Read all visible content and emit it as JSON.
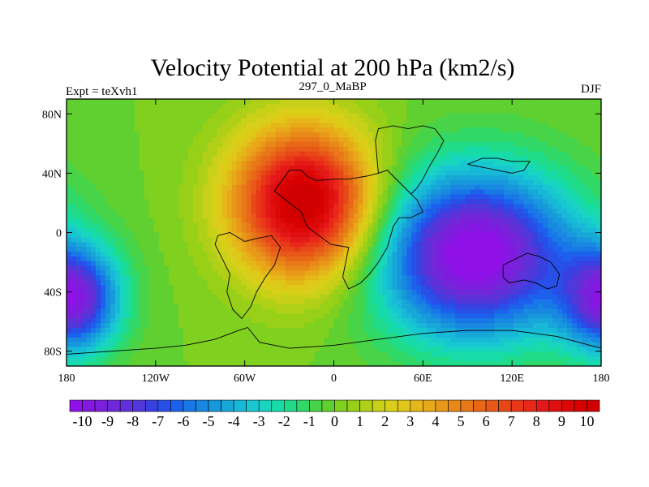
{
  "chart_data": {
    "type": "heatmap",
    "title": "Velocity Potential at 200 hPa (km2/s)",
    "left_label": "Expt = teXvh1",
    "center_label": "297_0_MaBP",
    "right_label": "DJF",
    "xlim": [
      -180,
      180
    ],
    "ylim": [
      -90,
      90
    ],
    "x_ticks": [
      {
        "value": -180,
        "label": "180"
      },
      {
        "value": -120,
        "label": "120W"
      },
      {
        "value": -60,
        "label": "60W"
      },
      {
        "value": 0,
        "label": "0"
      },
      {
        "value": 60,
        "label": "60E"
      },
      {
        "value": 120,
        "label": "120E"
      },
      {
        "value": 180,
        "label": "180"
      }
    ],
    "y_ticks": [
      {
        "value": 80,
        "label": "80N"
      },
      {
        "value": 40,
        "label": "40N"
      },
      {
        "value": 0,
        "label": "0"
      },
      {
        "value": -40,
        "label": "40S"
      },
      {
        "value": -80,
        "label": "80S"
      }
    ],
    "colorbar": {
      "min": -10.5,
      "max": 10.5,
      "step": 0.5,
      "labels": [
        "-10",
        "-9",
        "-8",
        "-7",
        "-6",
        "-5",
        "-4",
        "-3",
        "-2",
        "-1",
        "0",
        "1",
        "2",
        "3",
        "4",
        "5",
        "6",
        "7",
        "8",
        "9",
        "10"
      ],
      "colors": [
        "#9010e8",
        "#8318e0",
        "#7a20dc",
        "#7028d8",
        "#6030d8",
        "#5038da",
        "#3840e0",
        "#2850e8",
        "#1c60ec",
        "#1878e8",
        "#1888e0",
        "#1898dc",
        "#18a8d8",
        "#18b8d8",
        "#18c8d0",
        "#18d4c0",
        "#18dca8",
        "#20dc88",
        "#30d868",
        "#48d448",
        "#60d030",
        "#80d020",
        "#98d018",
        "#b0d018",
        "#c8d018",
        "#d8d018",
        "#e0c818",
        "#e4b818",
        "#e8a818",
        "#e89818",
        "#e88818",
        "#e87818",
        "#e86818",
        "#e85818",
        "#e84818",
        "#e83818",
        "#e82818",
        "#e41818",
        "#e01010",
        "#dc0808",
        "#d80000",
        "#d00000"
      ]
    },
    "field_centers": [
      {
        "lon": -20,
        "lat": 20,
        "amplitude": 11,
        "lon_radius": 48,
        "lat_radius": 50
      },
      {
        "lon": 95,
        "lat": -15,
        "amplitude": -11,
        "lon_radius": 65,
        "lat_radius": 55
      },
      {
        "lon": -175,
        "lat": -45,
        "amplitude": -9,
        "lon_radius": 30,
        "lat_radius": 35
      }
    ],
    "coastlines": [
      [
        [
          -40,
          28
        ],
        [
          -30,
          42
        ],
        [
          -22,
          42
        ],
        [
          -18,
          38
        ],
        [
          -12,
          35
        ],
        [
          0,
          36
        ],
        [
          10,
          36
        ],
        [
          22,
          38
        ],
        [
          30,
          40
        ],
        [
          36,
          42
        ],
        [
          40,
          38
        ],
        [
          46,
          32
        ],
        [
          52,
          26
        ],
        [
          56,
          22
        ],
        [
          60,
          14
        ],
        [
          52,
          10
        ],
        [
          44,
          10
        ],
        [
          40,
          4
        ],
        [
          36,
          -10
        ],
        [
          30,
          -20
        ],
        [
          24,
          -28
        ],
        [
          18,
          -34
        ],
        [
          10,
          -38
        ],
        [
          6,
          -30
        ],
        [
          10,
          -10
        ],
        [
          -2,
          -8
        ],
        [
          -10,
          -2
        ],
        [
          -18,
          4
        ],
        [
          -22,
          14
        ],
        [
          -30,
          20
        ],
        [
          -40,
          28
        ]
      ],
      [
        [
          30,
          40
        ],
        [
          28,
          62
        ],
        [
          30,
          70
        ],
        [
          40,
          72
        ],
        [
          50,
          70
        ],
        [
          60,
          72
        ],
        [
          68,
          70
        ],
        [
          74,
          62
        ],
        [
          70,
          54
        ],
        [
          64,
          44
        ],
        [
          60,
          36
        ],
        [
          56,
          30
        ],
        [
          52,
          26
        ]
      ],
      [
        [
          -78,
          -2
        ],
        [
          -80,
          -8
        ],
        [
          -76,
          -16
        ],
        [
          -70,
          -28
        ],
        [
          -72,
          -40
        ],
        [
          -68,
          -52
        ],
        [
          -62,
          -58
        ],
        [
          -56,
          -50
        ],
        [
          -52,
          -40
        ],
        [
          -46,
          -30
        ],
        [
          -40,
          -22
        ],
        [
          -36,
          -10
        ],
        [
          -42,
          -2
        ],
        [
          -52,
          -4
        ],
        [
          -60,
          -6
        ],
        [
          -70,
          0
        ],
        [
          -78,
          -2
        ]
      ],
      [
        [
          114,
          -22
        ],
        [
          122,
          -18
        ],
        [
          130,
          -14
        ],
        [
          138,
          -16
        ],
        [
          146,
          -20
        ],
        [
          152,
          -28
        ],
        [
          150,
          -36
        ],
        [
          144,
          -38
        ],
        [
          136,
          -34
        ],
        [
          128,
          -32
        ],
        [
          118,
          -34
        ],
        [
          114,
          -30
        ],
        [
          114,
          -22
        ]
      ],
      [
        [
          90,
          46
        ],
        [
          100,
          50
        ],
        [
          110,
          50
        ],
        [
          120,
          48
        ],
        [
          132,
          48
        ],
        [
          128,
          42
        ],
        [
          120,
          40
        ],
        [
          110,
          42
        ],
        [
          100,
          44
        ],
        [
          90,
          46
        ]
      ],
      [
        [
          -180,
          -82
        ],
        [
          -150,
          -80
        ],
        [
          -120,
          -78
        ],
        [
          -100,
          -76
        ],
        [
          -80,
          -72
        ],
        [
          -64,
          -66
        ],
        [
          -58,
          -64
        ],
        [
          -50,
          -74
        ],
        [
          -30,
          -78
        ],
        [
          0,
          -76
        ],
        [
          30,
          -72
        ],
        [
          60,
          -68
        ],
        [
          90,
          -66
        ],
        [
          120,
          -66
        ],
        [
          150,
          -70
        ],
        [
          180,
          -78
        ]
      ]
    ]
  }
}
